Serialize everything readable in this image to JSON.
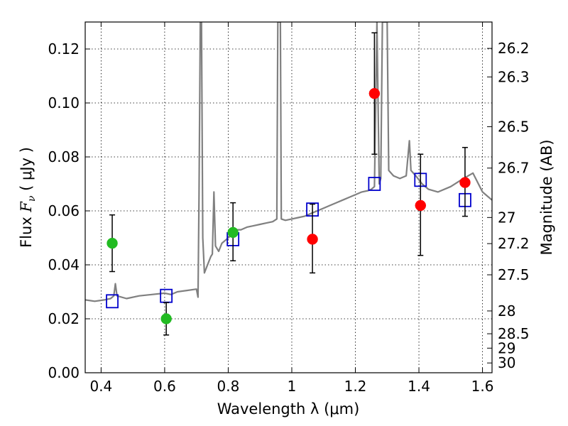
{
  "chart_data": {
    "type": "scatter",
    "title": "",
    "xlabel": "Wavelength  λ (μm)",
    "ylabel_left": {
      "prefix": "Flux  ",
      "symbol": "F",
      "subscript": "ν",
      "unit": "  ( μJy )"
    },
    "ylabel_right": "Magnitude (AB)",
    "xlim": [
      0.35,
      1.63
    ],
    "ylim": [
      0.0,
      0.13
    ],
    "grid": true,
    "legend": "none",
    "x_ticks": [
      {
        "value": 0.4,
        "label": "0.4"
      },
      {
        "value": 0.6,
        "label": "0.6"
      },
      {
        "value": 0.8,
        "label": "0.8"
      },
      {
        "value": 1.0,
        "label": "1"
      },
      {
        "value": 1.2,
        "label": "1.2"
      },
      {
        "value": 1.4,
        "label": "1.4"
      },
      {
        "value": 1.6,
        "label": "1.6"
      }
    ],
    "y_ticks": [
      {
        "value": 0.0,
        "label": "0.00"
      },
      {
        "value": 0.02,
        "label": "0.02"
      },
      {
        "value": 0.04,
        "label": "0.04"
      },
      {
        "value": 0.06,
        "label": "0.06"
      },
      {
        "value": 0.08,
        "label": "0.08"
      },
      {
        "value": 0.1,
        "label": "0.10"
      },
      {
        "value": 0.12,
        "label": "0.12"
      }
    ],
    "mag_ticks": [
      {
        "mag": 26.2,
        "label": "26.2"
      },
      {
        "mag": 26.3,
        "label": "26.3"
      },
      {
        "mag": 26.5,
        "label": "26.5"
      },
      {
        "mag": 26.7,
        "label": "26.7"
      },
      {
        "mag": 27.0,
        "label": "27"
      },
      {
        "mag": 27.2,
        "label": "27.2"
      },
      {
        "mag": 27.5,
        "label": "27.5"
      },
      {
        "mag": 28.0,
        "label": "28"
      },
      {
        "mag": 28.5,
        "label": "28.5"
      },
      {
        "mag": 29.0,
        "label": "29"
      },
      {
        "mag": 30.0,
        "label": "30"
      }
    ],
    "model_spectrum": {
      "color": "#808080",
      "points": [
        [
          0.35,
          0.027
        ],
        [
          0.38,
          0.0265
        ],
        [
          0.41,
          0.027
        ],
        [
          0.43,
          0.0275
        ],
        [
          0.44,
          0.0285
        ],
        [
          0.445,
          0.033
        ],
        [
          0.45,
          0.0285
        ],
        [
          0.48,
          0.0275
        ],
        [
          0.52,
          0.0285
        ],
        [
          0.56,
          0.029
        ],
        [
          0.6,
          0.0295
        ],
        [
          0.62,
          0.029
        ],
        [
          0.64,
          0.03
        ],
        [
          0.67,
          0.0305
        ],
        [
          0.7,
          0.031
        ],
        [
          0.705,
          0.028
        ],
        [
          0.708,
          0.065
        ],
        [
          0.712,
          0.13
        ],
        [
          0.716,
          0.13
        ],
        [
          0.72,
          0.05
        ],
        [
          0.725,
          0.037
        ],
        [
          0.735,
          0.04
        ],
        [
          0.745,
          0.043
        ],
        [
          0.75,
          0.044
        ],
        [
          0.755,
          0.067
        ],
        [
          0.76,
          0.047
        ],
        [
          0.77,
          0.045
        ],
        [
          0.78,
          0.048
        ],
        [
          0.79,
          0.049
        ],
        [
          0.8,
          0.05
        ],
        [
          0.81,
          0.051
        ],
        [
          0.82,
          0.052
        ],
        [
          0.83,
          0.053
        ],
        [
          0.84,
          0.053
        ],
        [
          0.86,
          0.054
        ],
        [
          0.88,
          0.0545
        ],
        [
          0.9,
          0.055
        ],
        [
          0.92,
          0.0555
        ],
        [
          0.94,
          0.056
        ],
        [
          0.953,
          0.057
        ],
        [
          0.956,
          0.13
        ],
        [
          0.964,
          0.13
        ],
        [
          0.967,
          0.057
        ],
        [
          0.98,
          0.0565
        ],
        [
          1.0,
          0.057
        ],
        [
          1.02,
          0.0575
        ],
        [
          1.04,
          0.058
        ],
        [
          1.06,
          0.059
        ],
        [
          1.08,
          0.06
        ],
        [
          1.1,
          0.061
        ],
        [
          1.12,
          0.062
        ],
        [
          1.14,
          0.063
        ],
        [
          1.16,
          0.064
        ],
        [
          1.18,
          0.065
        ],
        [
          1.2,
          0.066
        ],
        [
          1.22,
          0.067
        ],
        [
          1.24,
          0.0675
        ],
        [
          1.25,
          0.068
        ],
        [
          1.26,
          0.069
        ],
        [
          1.268,
          0.13
        ],
        [
          1.275,
          0.07
        ],
        [
          1.28,
          0.072
        ],
        [
          1.285,
          0.13
        ],
        [
          1.3,
          0.13
        ],
        [
          1.305,
          0.075
        ],
        [
          1.32,
          0.073
        ],
        [
          1.34,
          0.072
        ],
        [
          1.36,
          0.073
        ],
        [
          1.37,
          0.086
        ],
        [
          1.375,
          0.075
        ],
        [
          1.39,
          0.073
        ],
        [
          1.41,
          0.07
        ],
        [
          1.43,
          0.068
        ],
        [
          1.46,
          0.067
        ],
        [
          1.5,
          0.069
        ],
        [
          1.54,
          0.072
        ],
        [
          1.57,
          0.074
        ],
        [
          1.6,
          0.067
        ],
        [
          1.63,
          0.064
        ]
      ]
    },
    "series": [
      {
        "marker": "square",
        "color": "#0000cc",
        "points": [
          {
            "x": 0.435,
            "y": 0.0265
          },
          {
            "x": 0.605,
            "y": 0.0285
          },
          {
            "x": 0.815,
            "y": 0.0495
          },
          {
            "x": 1.065,
            "y": 0.0605
          },
          {
            "x": 1.26,
            "y": 0.07
          },
          {
            "x": 1.405,
            "y": 0.0715
          },
          {
            "x": 1.545,
            "y": 0.064
          }
        ]
      },
      {
        "marker": "circle",
        "color": "#22bb22",
        "points": [
          {
            "x": 0.435,
            "y": 0.048,
            "err_lo": 0.0375,
            "err_hi": 0.0585
          },
          {
            "x": 0.605,
            "y": 0.02,
            "err_lo": 0.014,
            "err_hi": 0.026
          },
          {
            "x": 0.815,
            "y": 0.052,
            "err_lo": 0.0415,
            "err_hi": 0.063
          }
        ]
      },
      {
        "marker": "circle",
        "color": "#ff0000",
        "points": [
          {
            "x": 1.065,
            "y": 0.0495,
            "err_lo": 0.037,
            "err_hi": 0.0625
          },
          {
            "x": 1.26,
            "y": 0.1035,
            "err_lo": 0.081,
            "err_hi": 0.126
          },
          {
            "x": 1.405,
            "y": 0.062,
            "err_lo": 0.0435,
            "err_hi": 0.081
          },
          {
            "x": 1.545,
            "y": 0.0705,
            "err_lo": 0.058,
            "err_hi": 0.0835
          }
        ]
      }
    ]
  }
}
